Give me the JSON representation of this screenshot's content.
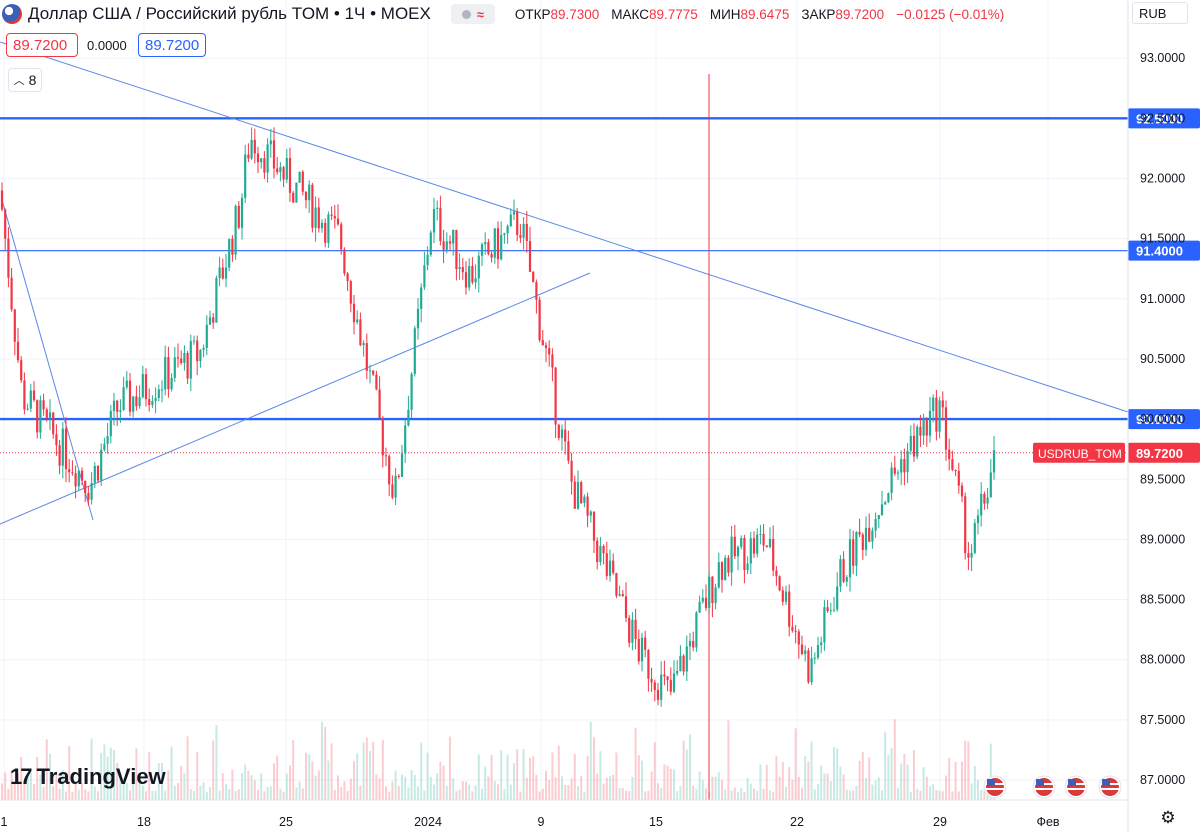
{
  "header": {
    "symbol_title": "Доллар США / Российский рубль TOM • 1Ч • MOEX",
    "ohlc": [
      {
        "label": "ОТКР",
        "value": "89.7300"
      },
      {
        "label": "МАКС",
        "value": "89.7775"
      },
      {
        "label": "МИН",
        "value": "89.6475"
      },
      {
        "label": "ЗАКР",
        "value": "89.7200"
      }
    ],
    "change": "−0.0125 (−0.01%)"
  },
  "price_boxes": {
    "bid": "89.7200",
    "spread": "0.0000",
    "ask": "89.7200"
  },
  "indicators_collapsed_count": "8",
  "currency": "RUB",
  "brand": "TradingView",
  "icons": [
    "us-flag-icon",
    "settings-gear-icon",
    "chevron-up-icon"
  ],
  "colors": {
    "up": "#22ab94",
    "down": "#f23645",
    "levels": "#2962ff",
    "trendlines": "#5b87e6",
    "vline": "#f23645"
  },
  "chart_data": {
    "type": "candlestick",
    "title": "Доллар США / Российский рубль TOM • 1Ч • MOEX",
    "ylim": [
      86.85,
      93.3
    ],
    "y_ticks": [
      "87.0000",
      "87.5000",
      "88.0000",
      "88.5000",
      "89.0000",
      "89.5000",
      "90.0000",
      "90.5000",
      "91.0000",
      "91.5000",
      "92.0000",
      "92.5000",
      "93.0000"
    ],
    "x_ticks": [
      "1",
      "18",
      "25",
      "2024",
      "9",
      "15",
      "22",
      "29",
      "Фев"
    ],
    "series_label": "USDRUB_TOM",
    "last_price": "89.7200",
    "horizontal_levels": [
      {
        "price": 92.5,
        "label": "92.5000"
      },
      {
        "price": 91.4,
        "label": "91.4000"
      },
      {
        "price": 90.0,
        "label": "90.0000"
      }
    ],
    "trendlines": [
      {
        "from": [
          "1",
          93.1
        ],
        "to": [
          "Фев",
          90.1
        ]
      },
      {
        "from": [
          "1",
          89.15
        ],
        "to": [
          "9",
          91.25
        ]
      },
      {
        "from": [
          "1",
          91.8
        ],
        "to": [
          "18",
          89.2
        ]
      }
    ],
    "vertical_line_at": "15-17",
    "price_path": [
      {
        "x": "1",
        "close": 91.9
      },
      {
        "x": "1",
        "close": 90.2
      },
      {
        "x": "18",
        "close": 89.45
      },
      {
        "x": "18",
        "close": 90.1
      },
      {
        "x": "18",
        "close": 90.55
      },
      {
        "x": "25",
        "close": 91.75
      },
      {
        "x": "25",
        "close": 92.35
      },
      {
        "x": "25",
        "close": 91.5
      },
      {
        "x": "2024",
        "close": 89.35
      },
      {
        "x": "2024",
        "close": 91.7
      },
      {
        "x": "2024",
        "close": 91.2
      },
      {
        "x": "9",
        "close": 91.65
      },
      {
        "x": "9",
        "close": 89.5
      },
      {
        "x": "15",
        "close": 88.05
      },
      {
        "x": "15",
        "close": 87.7
      },
      {
        "x": "15",
        "close": 88.8
      },
      {
        "x": "22",
        "close": 89.0
      },
      {
        "x": "22",
        "close": 87.9
      },
      {
        "x": "22",
        "close": 88.7
      },
      {
        "x": "29",
        "close": 89.7
      },
      {
        "x": "29",
        "close": 90.1
      },
      {
        "x": "29",
        "close": 88.85
      },
      {
        "x": "29",
        "close": 89.72
      }
    ]
  }
}
